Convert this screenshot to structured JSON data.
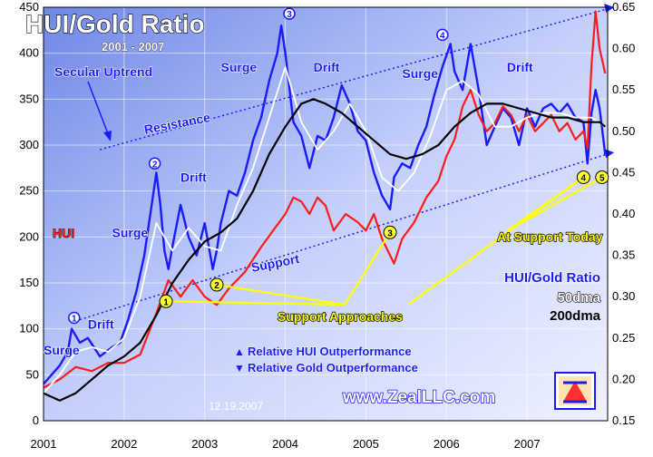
{
  "chart_data": {
    "type": "line",
    "title": "HUI/Gold Ratio",
    "subtitle": "2001 - 2007",
    "x_ticks": [
      "2001",
      "2002",
      "2003",
      "2004",
      "2005",
      "2006",
      "2007"
    ],
    "x_range": [
      2001.0,
      2008.0
    ],
    "y_left_ticks": [
      "0",
      "50",
      "100",
      "150",
      "200",
      "250",
      "300",
      "350",
      "400",
      "450"
    ],
    "y_left_range": [
      0,
      450
    ],
    "y_right_ticks": [
      "0.15",
      "0.20",
      "0.25",
      "0.30",
      "0.35",
      "0.40",
      "0.45",
      "0.50",
      "0.55",
      "0.60",
      "0.65"
    ],
    "y_right_range": [
      0.15,
      0.65
    ],
    "grid": true,
    "series": [
      {
        "name": "HUI",
        "axis": "left",
        "color": "#1a1aff",
        "x": [
          2001.0,
          2001.1,
          2001.2,
          2001.3,
          2001.35,
          2001.45,
          2001.55,
          2001.7,
          2001.85,
          2001.95,
          2002.05,
          2002.15,
          2002.25,
          2002.35,
          2002.4,
          2002.45,
          2002.5,
          2002.55,
          2002.6,
          2002.7,
          2002.8,
          2002.9,
          2003.0,
          2003.1,
          2003.15,
          2003.2,
          2003.3,
          2003.4,
          2003.5,
          2003.6,
          2003.7,
          2003.8,
          2003.9,
          2003.95,
          2004.0,
          2004.1,
          2004.2,
          2004.3,
          2004.4,
          2004.5,
          2004.6,
          2004.7,
          2004.8,
          2004.9,
          2005.0,
          2005.1,
          2005.2,
          2005.3,
          2005.35,
          2005.45,
          2005.55,
          2005.65,
          2005.75,
          2005.85,
          2005.95,
          2006.05,
          2006.1,
          2006.2,
          2006.3,
          2006.4,
          2006.5,
          2006.6,
          2006.7,
          2006.8,
          2006.9,
          2007.0,
          2007.1,
          2007.2,
          2007.3,
          2007.4,
          2007.5,
          2007.6,
          2007.7,
          2007.75,
          2007.8,
          2007.85,
          2007.9,
          2007.97
        ],
        "values": [
          40,
          50,
          60,
          75,
          100,
          85,
          90,
          70,
          80,
          85,
          110,
          140,
          180,
          240,
          270,
          235,
          185,
          165,
          190,
          235,
          200,
          180,
          215,
          165,
          185,
          215,
          250,
          245,
          270,
          305,
          330,
          370,
          400,
          430,
          400,
          325,
          310,
          275,
          310,
          305,
          330,
          365,
          345,
          315,
          305,
          270,
          245,
          230,
          265,
          280,
          275,
          300,
          320,
          355,
          385,
          410,
          380,
          360,
          410,
          360,
          300,
          320,
          340,
          330,
          300,
          340,
          320,
          340,
          345,
          335,
          345,
          330,
          325,
          280,
          335,
          360,
          340,
          290
        ]
      },
      {
        "name": "HUI/Gold Ratio",
        "axis": "right",
        "color": "#ff1a1a",
        "x": [
          2001.0,
          2001.2,
          2001.4,
          2001.6,
          2001.8,
          2002.0,
          2002.2,
          2002.4,
          2002.55,
          2002.7,
          2002.85,
          2003.0,
          2003.15,
          2003.3,
          2003.5,
          2003.7,
          2003.85,
          2004.0,
          2004.1,
          2004.2,
          2004.3,
          2004.4,
          2004.5,
          2004.6,
          2004.75,
          2004.9,
          2005.0,
          2005.1,
          2005.2,
          2005.3,
          2005.35,
          2005.45,
          2005.6,
          2005.75,
          2005.9,
          2006.0,
          2006.1,
          2006.2,
          2006.3,
          2006.4,
          2006.5,
          2006.6,
          2006.7,
          2006.8,
          2006.9,
          2007.0,
          2007.1,
          2007.2,
          2007.3,
          2007.4,
          2007.5,
          2007.6,
          2007.7,
          2007.75,
          2007.8,
          2007.85,
          2007.9,
          2007.97
        ],
        "values": [
          0.19,
          0.2,
          0.215,
          0.21,
          0.22,
          0.22,
          0.23,
          0.28,
          0.32,
          0.3,
          0.32,
          0.3,
          0.29,
          0.31,
          0.33,
          0.36,
          0.38,
          0.4,
          0.42,
          0.415,
          0.4,
          0.42,
          0.41,
          0.38,
          0.4,
          0.39,
          0.38,
          0.4,
          0.37,
          0.35,
          0.34,
          0.37,
          0.39,
          0.42,
          0.44,
          0.47,
          0.49,
          0.53,
          0.55,
          0.52,
          0.5,
          0.51,
          0.53,
          0.52,
          0.5,
          0.52,
          0.5,
          0.51,
          0.52,
          0.5,
          0.51,
          0.49,
          0.5,
          0.48,
          0.58,
          0.645,
          0.6,
          0.57
        ]
      },
      {
        "name": "50dma",
        "axis": "left",
        "color": "#ffffff",
        "x": [
          2001.0,
          2001.2,
          2001.4,
          2001.6,
          2001.8,
          2002.0,
          2002.2,
          2002.4,
          2002.6,
          2002.8,
          2003.0,
          2003.2,
          2003.4,
          2003.6,
          2003.8,
          2004.0,
          2004.2,
          2004.4,
          2004.6,
          2004.8,
          2005.0,
          2005.2,
          2005.4,
          2005.6,
          2005.8,
          2006.0,
          2006.2,
          2006.4,
          2006.6,
          2006.8,
          2007.0,
          2007.2,
          2007.4,
          2007.6,
          2007.8,
          2007.97
        ],
        "values": [
          30,
          50,
          75,
          80,
          75,
          90,
          135,
          215,
          185,
          210,
          190,
          185,
          235,
          275,
          330,
          385,
          325,
          295,
          315,
          345,
          315,
          265,
          250,
          270,
          310,
          360,
          370,
          355,
          320,
          320,
          330,
          335,
          335,
          330,
          330,
          320
        ]
      },
      {
        "name": "200dma",
        "axis": "left",
        "color": "#000000",
        "x": [
          2001.0,
          2001.2,
          2001.4,
          2001.6,
          2001.8,
          2002.0,
          2002.2,
          2002.4,
          2002.6,
          2002.8,
          2003.0,
          2003.2,
          2003.4,
          2003.6,
          2003.8,
          2004.0,
          2004.2,
          2004.35,
          2004.5,
          2004.7,
          2004.9,
          2005.1,
          2005.3,
          2005.5,
          2005.7,
          2005.9,
          2006.1,
          2006.3,
          2006.5,
          2006.7,
          2006.9,
          2007.1,
          2007.3,
          2007.5,
          2007.7,
          2007.9,
          2007.97
        ],
        "values": [
          30,
          22,
          30,
          45,
          60,
          70,
          85,
          115,
          150,
          175,
          195,
          205,
          220,
          250,
          290,
          320,
          345,
          350,
          345,
          335,
          320,
          305,
          290,
          285,
          290,
          300,
          320,
          335,
          345,
          345,
          340,
          335,
          330,
          330,
          325,
          325,
          320
        ]
      }
    ],
    "legend": {
      "items": [
        {
          "label": "HUI/Gold Ratio",
          "color": "#ff1a1a"
        },
        {
          "label": "50dma",
          "color": "#ffffff"
        },
        {
          "label": "200dma",
          "color": "#000000"
        }
      ],
      "placement": "right"
    },
    "trendlines": [
      {
        "label": "Resistance",
        "from": [
          2001.7,
          295
        ],
        "to": [
          2007.99,
          448
        ]
      },
      {
        "label": "Support",
        "from": [
          2001.45,
          110
        ],
        "to": [
          2007.99,
          290
        ]
      }
    ],
    "annotations": {
      "secular_uptrend": "Secular Uptrend",
      "resistance": "Resistance",
      "support": "Support",
      "hui_label": "HUI",
      "support_approaches": "Support Approaches",
      "at_support_today": "At Support Today",
      "relative_hui": "Relative HUI Outperformance",
      "relative_gold": "Relative Gold Outperformance",
      "website": "www.ZealLLC.com",
      "date": "12.19.2007",
      "phase_labels": [
        {
          "text": "Surge",
          "x": 2001.0,
          "y": 72
        },
        {
          "text": "Drift",
          "x": 2001.55,
          "y": 100
        },
        {
          "text": "Surge",
          "x": 2001.85,
          "y": 200
        },
        {
          "text": "Drift",
          "x": 2002.7,
          "y": 260
        },
        {
          "text": "Surge",
          "x": 2003.2,
          "y": 380
        },
        {
          "text": "Drift",
          "x": 2004.35,
          "y": 380
        },
        {
          "text": "Surge",
          "x": 2005.45,
          "y": 373
        },
        {
          "text": "Drift",
          "x": 2006.75,
          "y": 380
        }
      ],
      "top_markers": [
        {
          "text": "1",
          "x": 2001.38,
          "y": 112
        },
        {
          "text": "2",
          "x": 2002.38,
          "y": 280
        },
        {
          "text": "3",
          "x": 2004.05,
          "y": 443
        },
        {
          "text": "4",
          "x": 2005.95,
          "y": 420
        }
      ],
      "support_markers": [
        {
          "text": "1",
          "x": 2002.52,
          "y": 130
        },
        {
          "text": "2",
          "x": 2003.15,
          "y": 148
        },
        {
          "text": "3",
          "x": 2005.3,
          "y": 205
        },
        {
          "text": "4",
          "x": 2007.7,
          "y": 265
        },
        {
          "text": "5",
          "x": 2007.93,
          "y": 265
        }
      ],
      "arrow_up": "▲",
      "arrow_down": "▼"
    }
  }
}
